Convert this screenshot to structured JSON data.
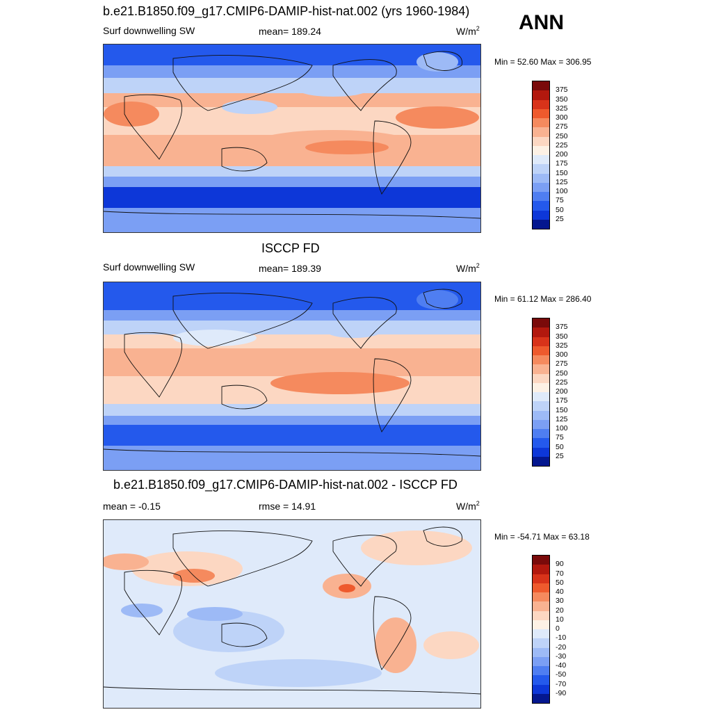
{
  "season": "ANN",
  "colors": {
    "abs": [
      "#7a0a0a",
      "#b2180e",
      "#d8331a",
      "#ee5a2d",
      "#f58a5e",
      "#f9b291",
      "#fcd7c2",
      "#fdf1e5",
      "#dfeafa",
      "#bed3f8",
      "#9dbaf6",
      "#7b9ff4",
      "#4f7ef1",
      "#2459ec",
      "#0d37d8",
      "#04178f"
    ],
    "diff": [
      "#7a0a0a",
      "#b2180e",
      "#d8331a",
      "#ee5a2d",
      "#f58a5e",
      "#f9b291",
      "#fcd7c2",
      "#fdf1e5",
      "#dfeafa",
      "#bed3f8",
      "#9dbaf6",
      "#7b9ff4",
      "#4f7ef1",
      "#2459ec",
      "#0d37d8",
      "#04178f"
    ]
  },
  "panels": [
    {
      "title": "b.e21.B1850.f09_g17.CMIP6-DAMIP-hist-nat.002 (yrs 1960-1984)",
      "left_label": "Surf downwelling SW",
      "center_label": "mean= 189.24",
      "units": "W/m",
      "units_sup": "2",
      "minmax": "Min =  52.60 Max = 306.95",
      "levels": [
        "375",
        "350",
        "325",
        "300",
        "275",
        "250",
        "225",
        "200",
        "175",
        "150",
        "125",
        "100",
        "75",
        "50",
        "25"
      ]
    },
    {
      "title": "ISCCP FD",
      "left_label": "Surf downwelling SW",
      "center_label": "mean= 189.39",
      "units": "W/m",
      "units_sup": "2",
      "minmax": "Min =  61.12 Max = 286.40",
      "levels": [
        "375",
        "350",
        "325",
        "300",
        "275",
        "250",
        "225",
        "200",
        "175",
        "150",
        "125",
        "100",
        "75",
        "50",
        "25"
      ]
    },
    {
      "title": "b.e21.B1850.f09_g17.CMIP6-DAMIP-hist-nat.002 - ISCCP FD",
      "left_label": "mean =  -0.15",
      "center_label": "rmse =  14.91",
      "units": "W/m",
      "units_sup": "2",
      "minmax": "Min = -54.71 Max =  63.18",
      "levels": [
        "90",
        "70",
        "50",
        "40",
        "30",
        "20",
        "10",
        "0",
        "-10",
        "-20",
        "-30",
        "-40",
        "-50",
        "-70",
        "-90"
      ]
    }
  ]
}
